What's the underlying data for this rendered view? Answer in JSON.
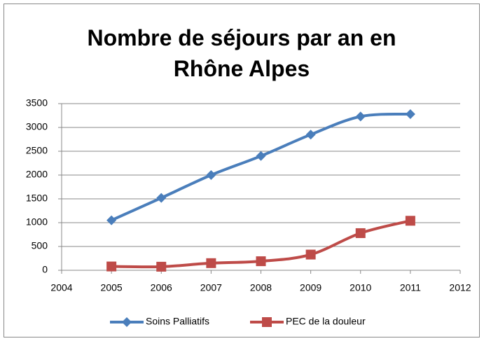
{
  "chart_data": {
    "type": "line",
    "title": "Nombre de séjours par an en Rhône Alpes",
    "x": [
      2005,
      2006,
      2007,
      2008,
      2009,
      2010,
      2011
    ],
    "series": [
      {
        "name": "Soins Palliatifs",
        "color": "#4a7ebb",
        "marker": "diamond",
        "values": [
          1050,
          1520,
          2000,
          2400,
          2850,
          3230,
          3280
        ]
      },
      {
        "name": "PEC de la douleur",
        "color": "#be4b48",
        "marker": "square",
        "values": [
          80,
          75,
          150,
          190,
          330,
          780,
          1040
        ]
      }
    ],
    "xlim": [
      2004,
      2012
    ],
    "xticks": [
      2004,
      2005,
      2006,
      2007,
      2008,
      2009,
      2010,
      2011,
      2012
    ],
    "ylim": [
      0,
      3500
    ],
    "yticks": [
      0,
      500,
      1000,
      1500,
      2000,
      2500,
      3000,
      3500
    ],
    "grid": true,
    "smooth": true,
    "legend": "bottom"
  }
}
